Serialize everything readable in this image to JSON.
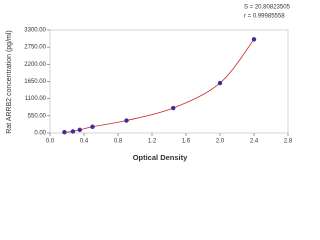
{
  "chart_data": {
    "type": "scatter",
    "y_label": "Rat ARRB2 concentration (pg/ml)",
    "x_label": "Optical Density",
    "annotations": [
      "S = 20.80823505",
      "r = 0.99985558"
    ],
    "series": [
      {
        "color": "#3b2e96",
        "line_color": "#cc2a2a",
        "x": [
          0.17,
          0.27,
          0.35,
          0.5,
          0.9,
          1.45,
          2.0,
          2.4
        ],
        "values": [
          25,
          50,
          100,
          200,
          400,
          800,
          1600,
          3000
        ]
      }
    ],
    "fit_line": true,
    "xlim": [
      0,
      2.8
    ],
    "xticks": [
      {
        "value": 0,
        "label": "0.0"
      },
      0.4,
      0.8,
      1.2,
      1.6,
      {
        "value": 2,
        "label": "2.0"
      },
      2.4,
      2.8
    ],
    "ylim": [
      0,
      3300
    ],
    "yticks": [
      {
        "value": 0,
        "label": "0.00"
      },
      {
        "value": 550,
        "label": "550.00"
      },
      {
        "value": 1100,
        "label": "1100.00"
      },
      {
        "value": 1650,
        "label": "1650.00"
      },
      {
        "value": 2200,
        "label": "2200.00"
      },
      {
        "value": 2750,
        "label": "2750.00"
      },
      {
        "value": 3300,
        "label": "3300.00"
      }
    ]
  }
}
